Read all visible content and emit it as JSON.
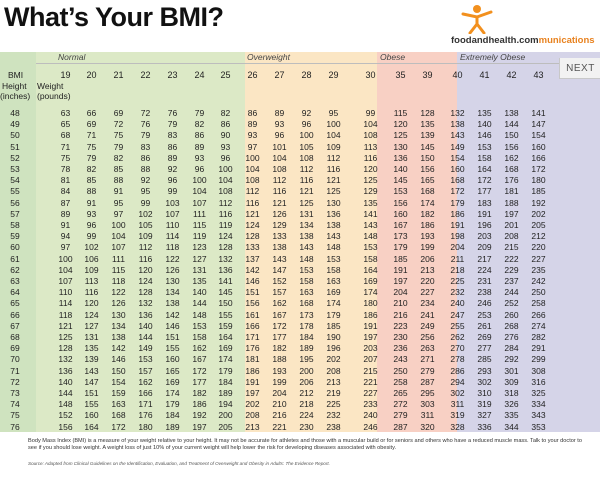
{
  "title": "What’s Your BMI?",
  "logo": {
    "text_main": "foodandhealth.com",
    "text_accent": "munications",
    "icon": "person-figure-icon"
  },
  "categories": [
    {
      "label": "Normal",
      "color": "#dce9c6"
    },
    {
      "label": "Overweight",
      "color": "#fbe6c4"
    },
    {
      "label": "Obese",
      "color": "#f8d0c4"
    },
    {
      "label": "Extremely Obese",
      "color": "#d5d4e8"
    }
  ],
  "left_column_color": "#cfe3bf",
  "header": {
    "bmi_label": "BMI",
    "height_label": "Height",
    "inches_label": "(inches)",
    "weight_label": "Weight",
    "pounds_label": "(pounds)"
  },
  "bmi_values": [
    "19",
    "20",
    "21",
    "22",
    "23",
    "24",
    "25",
    "26",
    "27",
    "28",
    "29",
    "30",
    "35",
    "39",
    "40",
    "41",
    "42",
    "43"
  ],
  "rows": [
    {
      "h": "48",
      "w": [
        "63",
        "66",
        "69",
        "72",
        "76",
        "79",
        "82",
        "86",
        "89",
        "92",
        "95",
        "99",
        "115",
        "128",
        "132",
        "135",
        "138",
        "141"
      ]
    },
    {
      "h": "49",
      "w": [
        "65",
        "69",
        "72",
        "76",
        "79",
        "82",
        "86",
        "89",
        "93",
        "96",
        "100",
        "104",
        "120",
        "135",
        "138",
        "140",
        "144",
        "147"
      ]
    },
    {
      "h": "50",
      "w": [
        "68",
        "71",
        "75",
        "79",
        "83",
        "86",
        "90",
        "93",
        "96",
        "100",
        "104",
        "108",
        "125",
        "139",
        "143",
        "146",
        "150",
        "154"
      ]
    },
    {
      "h": "51",
      "w": [
        "71",
        "75",
        "79",
        "83",
        "86",
        "89",
        "93",
        "97",
        "101",
        "105",
        "109",
        "113",
        "130",
        "145",
        "149",
        "153",
        "156",
        "160"
      ]
    },
    {
      "h": "52",
      "w": [
        "75",
        "79",
        "82",
        "86",
        "89",
        "93",
        "96",
        "100",
        "104",
        "108",
        "112",
        "116",
        "136",
        "150",
        "154",
        "158",
        "162",
        "166"
      ]
    },
    {
      "h": "53",
      "w": [
        "78",
        "82",
        "85",
        "88",
        "92",
        "96",
        "100",
        "104",
        "108",
        "112",
        "116",
        "120",
        "140",
        "156",
        "160",
        "164",
        "168",
        "172"
      ]
    },
    {
      "h": "54",
      "w": [
        "81",
        "85",
        "88",
        "92",
        "96",
        "100",
        "104",
        "108",
        "112",
        "116",
        "121",
        "125",
        "145",
        "165",
        "168",
        "172",
        "176",
        "180"
      ]
    },
    {
      "h": "55",
      "w": [
        "84",
        "88",
        "91",
        "95",
        "99",
        "104",
        "108",
        "112",
        "116",
        "121",
        "125",
        "129",
        "153",
        "168",
        "172",
        "177",
        "181",
        "185"
      ]
    },
    {
      "h": "56",
      "w": [
        "87",
        "91",
        "95",
        "99",
        "103",
        "107",
        "112",
        "116",
        "121",
        "125",
        "130",
        "135",
        "156",
        "174",
        "179",
        "183",
        "188",
        "192"
      ]
    },
    {
      "h": "57",
      "w": [
        "89",
        "93",
        "97",
        "102",
        "107",
        "111",
        "116",
        "121",
        "126",
        "131",
        "136",
        "141",
        "160",
        "182",
        "186",
        "191",
        "197",
        "202"
      ]
    },
    {
      "h": "58",
      "w": [
        "91",
        "96",
        "100",
        "105",
        "110",
        "115",
        "119",
        "124",
        "129",
        "134",
        "138",
        "143",
        "167",
        "186",
        "191",
        "196",
        "201",
        "205"
      ]
    },
    {
      "h": "59",
      "w": [
        "94",
        "99",
        "104",
        "109",
        "114",
        "119",
        "124",
        "128",
        "133",
        "138",
        "143",
        "148",
        "173",
        "193",
        "198",
        "203",
        "208",
        "212"
      ]
    },
    {
      "h": "60",
      "w": [
        "97",
        "102",
        "107",
        "112",
        "118",
        "123",
        "128",
        "133",
        "138",
        "143",
        "148",
        "153",
        "179",
        "199",
        "204",
        "209",
        "215",
        "220"
      ]
    },
    {
      "h": "61",
      "w": [
        "100",
        "106",
        "111",
        "116",
        "122",
        "127",
        "132",
        "137",
        "143",
        "148",
        "153",
        "158",
        "185",
        "206",
        "211",
        "217",
        "222",
        "227"
      ]
    },
    {
      "h": "62",
      "w": [
        "104",
        "109",
        "115",
        "120",
        "126",
        "131",
        "136",
        "142",
        "147",
        "153",
        "158",
        "164",
        "191",
        "213",
        "218",
        "224",
        "229",
        "235"
      ]
    },
    {
      "h": "63",
      "w": [
        "107",
        "113",
        "118",
        "124",
        "130",
        "135",
        "141",
        "146",
        "152",
        "158",
        "163",
        "169",
        "197",
        "220",
        "225",
        "231",
        "237",
        "242"
      ]
    },
    {
      "h": "64",
      "w": [
        "110",
        "116",
        "122",
        "128",
        "134",
        "140",
        "145",
        "151",
        "157",
        "163",
        "169",
        "174",
        "204",
        "227",
        "232",
        "238",
        "244",
        "250"
      ]
    },
    {
      "h": "65",
      "w": [
        "114",
        "120",
        "126",
        "132",
        "138",
        "144",
        "150",
        "156",
        "162",
        "168",
        "174",
        "180",
        "210",
        "234",
        "240",
        "246",
        "252",
        "258"
      ]
    },
    {
      "h": "66",
      "w": [
        "118",
        "124",
        "130",
        "136",
        "142",
        "148",
        "155",
        "161",
        "167",
        "173",
        "179",
        "186",
        "216",
        "241",
        "247",
        "253",
        "260",
        "266"
      ]
    },
    {
      "h": "67",
      "w": [
        "121",
        "127",
        "134",
        "140",
        "146",
        "153",
        "159",
        "166",
        "172",
        "178",
        "185",
        "191",
        "223",
        "249",
        "255",
        "261",
        "268",
        "274"
      ]
    },
    {
      "h": "68",
      "w": [
        "125",
        "131",
        "138",
        "144",
        "151",
        "158",
        "164",
        "171",
        "177",
        "184",
        "190",
        "197",
        "230",
        "256",
        "262",
        "269",
        "276",
        "282"
      ]
    },
    {
      "h": "69",
      "w": [
        "128",
        "135",
        "142",
        "149",
        "155",
        "162",
        "169",
        "176",
        "182",
        "189",
        "196",
        "203",
        "236",
        "263",
        "270",
        "277",
        "284",
        "291"
      ]
    },
    {
      "h": "70",
      "w": [
        "132",
        "139",
        "146",
        "153",
        "160",
        "167",
        "174",
        "181",
        "188",
        "195",
        "202",
        "207",
        "243",
        "271",
        "278",
        "285",
        "292",
        "299"
      ]
    },
    {
      "h": "71",
      "w": [
        "136",
        "143",
        "150",
        "157",
        "165",
        "172",
        "179",
        "186",
        "193",
        "200",
        "208",
        "215",
        "250",
        "279",
        "286",
        "293",
        "301",
        "308"
      ]
    },
    {
      "h": "72",
      "w": [
        "140",
        "147",
        "154",
        "162",
        "169",
        "177",
        "184",
        "191",
        "199",
        "206",
        "213",
        "221",
        "258",
        "287",
        "294",
        "302",
        "309",
        "316"
      ]
    },
    {
      "h": "73",
      "w": [
        "144",
        "151",
        "159",
        "166",
        "174",
        "182",
        "189",
        "197",
        "204",
        "212",
        "219",
        "227",
        "265",
        "295",
        "302",
        "310",
        "318",
        "325"
      ]
    },
    {
      "h": "74",
      "w": [
        "148",
        "155",
        "163",
        "171",
        "179",
        "186",
        "194",
        "202",
        "210",
        "218",
        "225",
        "233",
        "272",
        "303",
        "311",
        "319",
        "326",
        "334"
      ]
    },
    {
      "h": "75",
      "w": [
        "152",
        "160",
        "168",
        "176",
        "184",
        "192",
        "200",
        "208",
        "216",
        "224",
        "232",
        "240",
        "279",
        "311",
        "319",
        "327",
        "335",
        "343"
      ]
    },
    {
      "h": "76",
      "w": [
        "156",
        "164",
        "172",
        "180",
        "189",
        "197",
        "205",
        "213",
        "221",
        "230",
        "238",
        "246",
        "287",
        "320",
        "328",
        "336",
        "344",
        "353"
      ]
    }
  ],
  "next_button": "NEXT",
  "footnote": "Body Mass Index (BMI) is a measure of your weight relative to your height. It may not be accurate for athletes and those with a muscular build or for seniors and others who have a reduced muscle mass. Talk to your doctor to see if you should lose weight. A weight loss of just 10% of your current weight will help lower the risk for developing diseases associated with obesity.",
  "source": "Source: Adapted from Clinical Guidelines on the Identification, Evaluation, and Treatment of Overweight and Obesity in Adults: The Evidence Report."
}
